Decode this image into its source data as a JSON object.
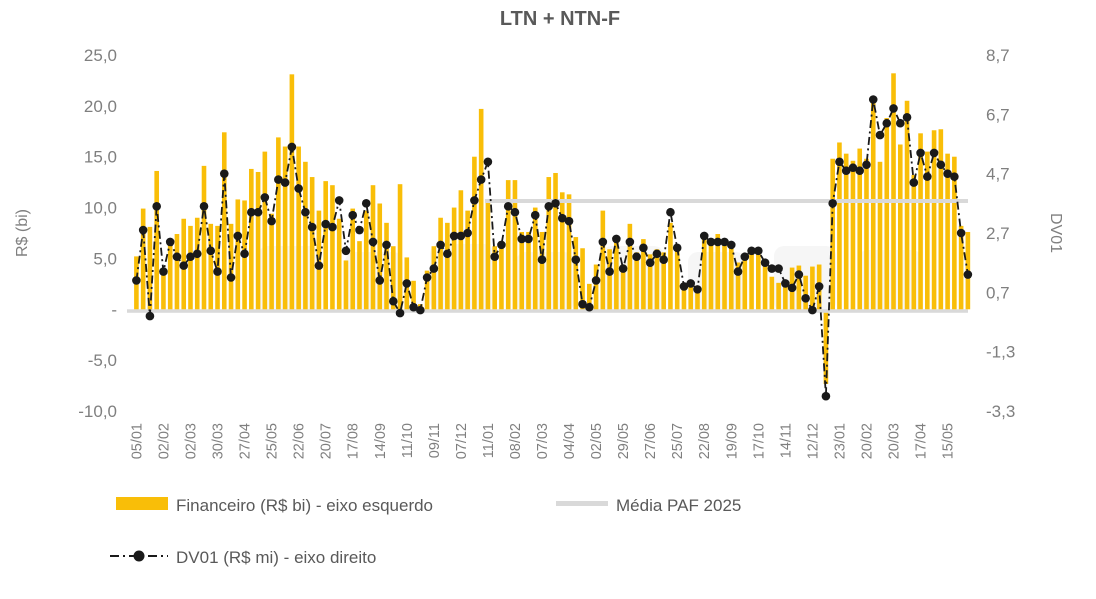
{
  "title": "LTN + NTN-F",
  "legend": {
    "financeiro": "Financeiro (R$ bi) - eixo esquerdo",
    "media": "Média PAF 2025",
    "dv01": "DV01 (R$ mi) - eixo direito"
  },
  "colors": {
    "bar": "#F9BE08",
    "dv01_line": "#1A1A1A",
    "media_line": "#D9D9D9",
    "baseline": "#D9D9D9",
    "axis_text": "#7F7F7F",
    "title_text": "#595959",
    "legend_text": "#595959",
    "watermark": "#F1F1F1"
  },
  "chart_data": {
    "type": "combo-bar-line",
    "title": "LTN + NTN-F",
    "grid": false,
    "legend_position": "bottom",
    "x_labels": [
      "05/01",
      "02/02",
      "02/03",
      "30/03",
      "27/04",
      "25/05",
      "22/06",
      "20/07",
      "17/08",
      "14/09",
      "11/10",
      "09/11",
      "07/12",
      "11/01",
      "08/02",
      "07/03",
      "04/04",
      "02/05",
      "29/05",
      "27/06",
      "25/07",
      "22/08",
      "19/09",
      "17/10",
      "14/11",
      "12/12",
      "23/01",
      "20/02",
      "20/03",
      "17/04",
      "15/05"
    ],
    "label_every_n_points": 4,
    "left_axis": {
      "title": "R$ (bi)",
      "min": -10,
      "max": 25,
      "tick_step": 5,
      "tick_values": [
        25,
        20,
        15,
        10,
        5,
        0,
        -5,
        -10
      ],
      "tick_labels": [
        "25,0",
        "20,0",
        "15,0",
        "10,0",
        "5,0",
        "-",
        "-5,0",
        "-10,0"
      ]
    },
    "right_axis": {
      "title": "DV01",
      "min": -3.3,
      "max": 8.7,
      "tick_step": 2,
      "tick_values": [
        8.7,
        6.7,
        4.7,
        2.7,
        0.7,
        -1.3,
        -3.3
      ],
      "tick_labels": [
        "8,7",
        "6,7",
        "4,7",
        "2,7",
        "0,7",
        "-1,3",
        "-3,3"
      ]
    },
    "series": [
      {
        "name": "Financeiro (R$ bi) - eixo esquerdo",
        "type": "bar",
        "axis": "left",
        "values": [
          5.2,
          9.9,
          8.1,
          13.6,
          3.9,
          6.4,
          7.4,
          8.9,
          8.2,
          9.0,
          14.1,
          8.4,
          8.2,
          17.4,
          8.4,
          10.8,
          10.7,
          13.8,
          13.5,
          15.5,
          9.4,
          16.9,
          16.0,
          23.1,
          16.0,
          14.5,
          13.0,
          9.7,
          12.6,
          12.2,
          8.9,
          4.8,
          9.9,
          6.7,
          9.7,
          12.2,
          10.4,
          8.5,
          6.2,
          12.3,
          5.1,
          2.8,
          0.5,
          3.8,
          6.2,
          9.0,
          8.5,
          10.0,
          11.7,
          9.7,
          15.0,
          19.7,
          10.7,
          6.2,
          6.7,
          12.7,
          12.7,
          7.6,
          7.6,
          10.0,
          7.6,
          13.0,
          13.4,
          11.5,
          11.3,
          7.1,
          6.0,
          2.5,
          4.4,
          9.7,
          5.9,
          7.2,
          4.4,
          8.4,
          5.6,
          6.9,
          5.4,
          5.9,
          5.6,
          8.5,
          6.2,
          2.5,
          2.6,
          2.3,
          7.4,
          6.7,
          7.4,
          6.9,
          6.4,
          4.6,
          5.4,
          5.6,
          5.8,
          4.4,
          3.2,
          2.6,
          2.6,
          4.1,
          4.3,
          3.3,
          4.2,
          4.4,
          -7.0,
          14.8,
          16.4,
          15.3,
          14.6,
          15.8,
          14.8,
          20.8,
          14.5,
          18.8,
          23.2,
          16.2,
          20.5,
          13.2,
          17.3,
          15.5,
          17.6,
          17.7,
          15.3,
          15.0,
          8.2,
          7.6
        ]
      },
      {
        "name": "DV01 (R$ mi) - eixo direito",
        "type": "line",
        "style": "dash-dot",
        "marker": "dot",
        "axis": "right",
        "values": [
          1.1,
          2.8,
          -0.1,
          3.6,
          1.4,
          2.4,
          1.9,
          1.6,
          1.9,
          2.0,
          3.6,
          2.1,
          1.4,
          4.7,
          1.2,
          2.6,
          2.0,
          3.4,
          3.4,
          3.9,
          3.1,
          4.5,
          4.4,
          5.6,
          4.2,
          3.4,
          2.9,
          1.6,
          3.0,
          2.9,
          3.8,
          2.1,
          3.3,
          2.8,
          3.7,
          2.4,
          1.1,
          2.3,
          0.4,
          0.0,
          1.0,
          0.2,
          0.1,
          1.2,
          1.5,
          2.3,
          2.0,
          2.6,
          2.6,
          2.7,
          3.8,
          4.5,
          5.1,
          1.9,
          2.3,
          3.6,
          3.4,
          2.5,
          2.5,
          3.3,
          1.8,
          3.6,
          3.7,
          3.2,
          3.1,
          1.8,
          0.3,
          0.2,
          1.1,
          2.4,
          1.4,
          2.5,
          1.5,
          2.4,
          1.9,
          2.2,
          1.7,
          2.0,
          1.8,
          3.4,
          2.2,
          0.9,
          1.0,
          0.8,
          2.6,
          2.4,
          2.4,
          2.4,
          2.3,
          1.4,
          1.9,
          2.1,
          2.1,
          1.7,
          1.5,
          1.5,
          1.0,
          0.85,
          1.3,
          0.5,
          0.1,
          0.9,
          -2.8,
          3.7,
          5.1,
          4.8,
          4.9,
          4.8,
          5.0,
          7.2,
          6.0,
          6.4,
          6.9,
          6.4,
          6.6,
          4.4,
          5.4,
          4.6,
          5.4,
          5.0,
          4.7,
          4.6,
          2.7,
          1.3
        ]
      },
      {
        "name": "Média PAF 2025",
        "type": "hline",
        "axis": "left",
        "value": 10.65,
        "start_index": 52,
        "end_index": 123
      }
    ]
  }
}
